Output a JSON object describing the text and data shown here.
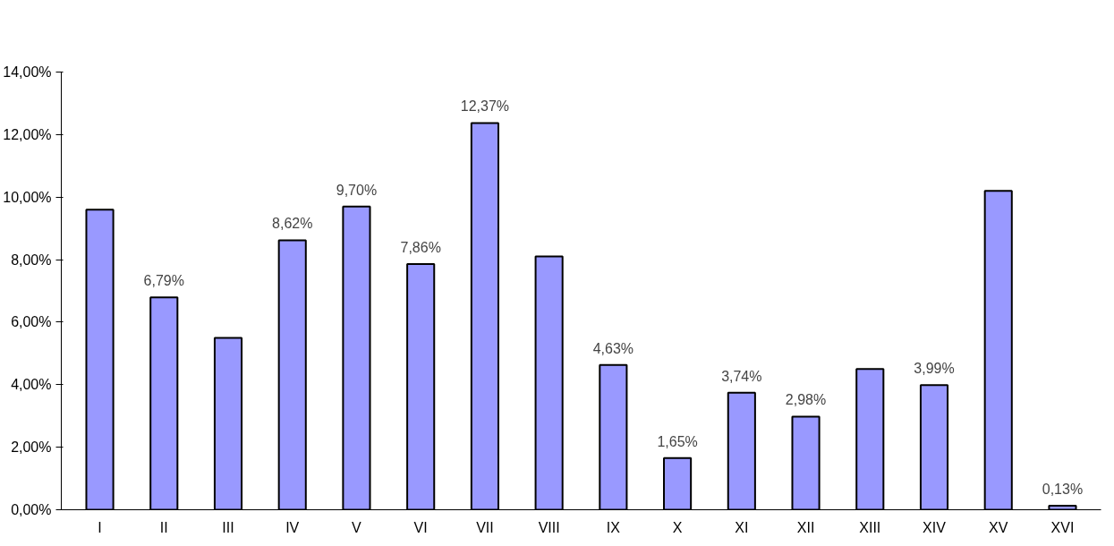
{
  "chart_data": {
    "type": "bar",
    "categories": [
      "I",
      "II",
      "III",
      "IV",
      "V",
      "VI",
      "VII",
      "VIII",
      "IX",
      "X",
      "XI",
      "XII",
      "XIII",
      "XIV",
      "XV",
      "XVI"
    ],
    "values": [
      9.6,
      6.79,
      5.5,
      8.62,
      9.7,
      7.86,
      12.37,
      8.1,
      4.63,
      1.65,
      3.74,
      2.98,
      4.5,
      3.99,
      10.2,
      0.13
    ],
    "value_labels": [
      null,
      "6,79%",
      null,
      "8,62%",
      "9,70%",
      "7,86%",
      "12,37%",
      null,
      "4,63%",
      "1,65%",
      "3,74%",
      "2,98%",
      null,
      "3,99%",
      null,
      "0,13%"
    ],
    "color": "#9999ff",
    "ylim": [
      0,
      14
    ],
    "yticks": [
      {
        "value": 0,
        "label": "0,00%"
      },
      {
        "value": 2,
        "label": "2,00%"
      },
      {
        "value": 4,
        "label": "4,00%"
      },
      {
        "value": 6,
        "label": "6,00%"
      },
      {
        "value": 8,
        "label": "8,00%"
      },
      {
        "value": 10,
        "label": "10,00%"
      },
      {
        "value": 12,
        "label": "12,00%"
      },
      {
        "value": 14,
        "label": "14,00%"
      }
    ],
    "grid": false
  }
}
